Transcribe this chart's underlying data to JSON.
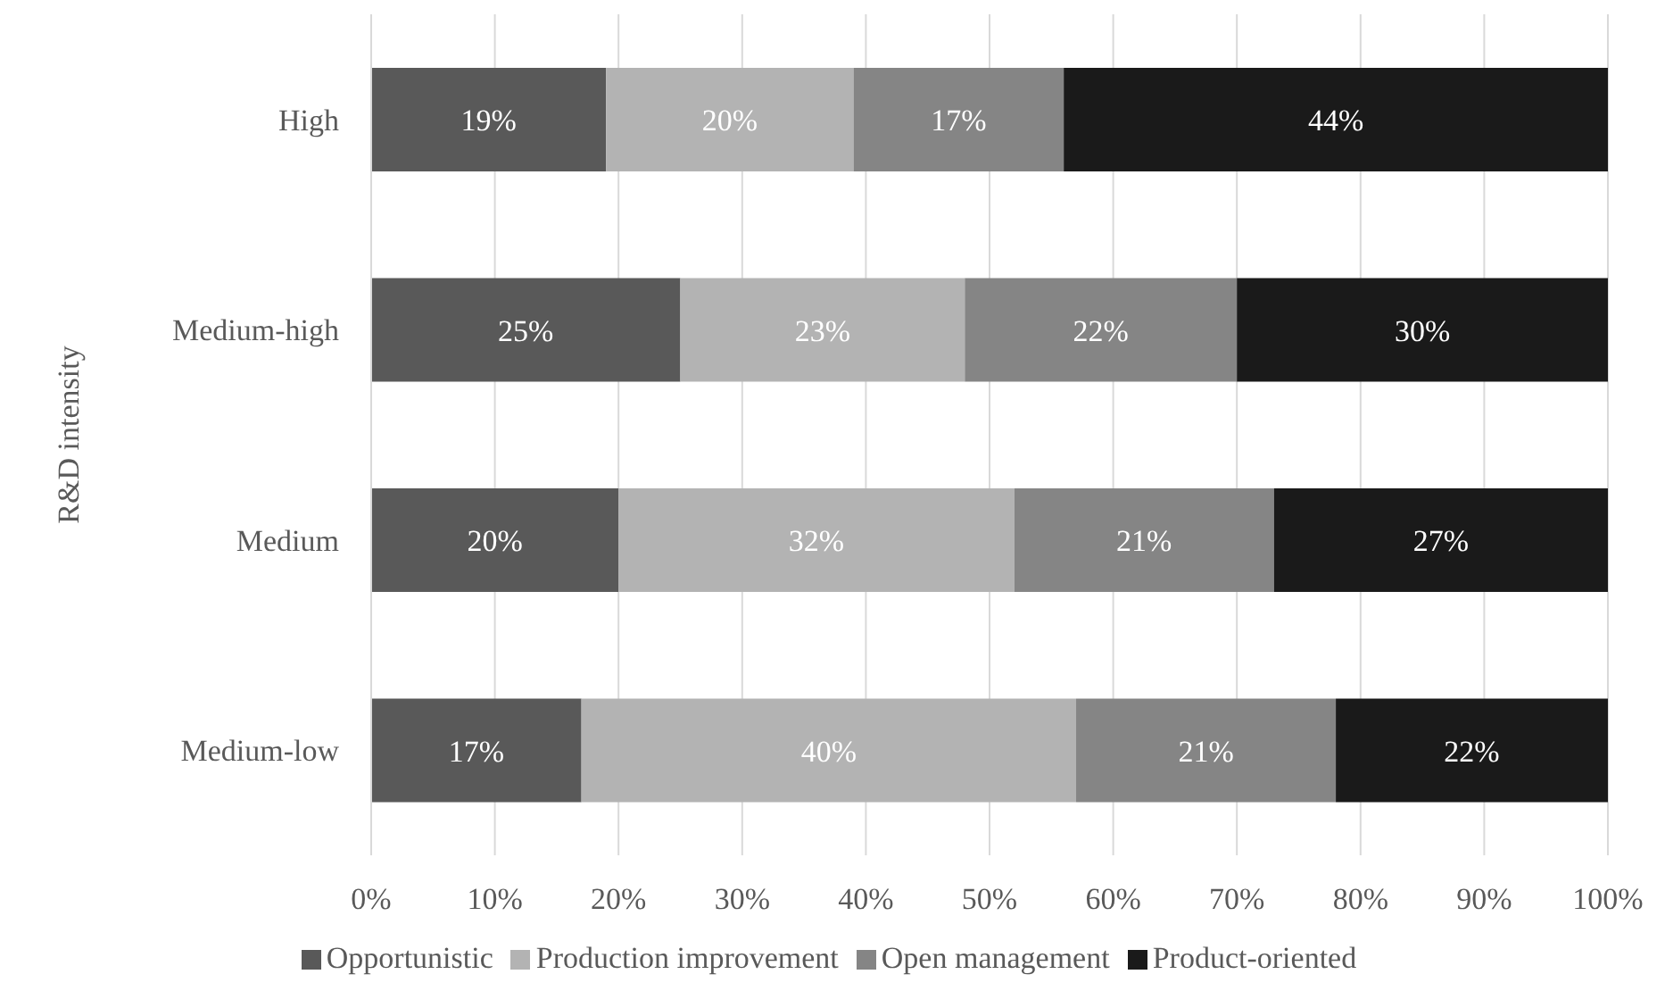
{
  "chart_data": {
    "type": "bar",
    "orientation": "horizontal",
    "stacked": true,
    "ylabel": "R&D intensity",
    "categories": [
      "High",
      "Medium-high",
      "Medium",
      "Medium-low"
    ],
    "series": [
      {
        "name": "Opportunistic",
        "color": "#595959",
        "values": [
          19,
          25,
          20,
          17
        ],
        "value_labels": [
          "19%",
          "25%",
          "20%",
          "17%"
        ]
      },
      {
        "name": "Production improvement",
        "color": "#b3b3b3",
        "values": [
          20,
          23,
          32,
          40
        ],
        "value_labels": [
          "20%",
          "23%",
          "32%",
          "40%"
        ]
      },
      {
        "name": "Open management",
        "color": "#858585",
        "values": [
          17,
          22,
          21,
          21
        ],
        "value_labels": [
          "17%",
          "22%",
          "21%",
          "21%"
        ]
      },
      {
        "name": "Product-oriented",
        "color": "#1a1a1a",
        "values": [
          44,
          30,
          27,
          22
        ],
        "value_labels": [
          "44%",
          "30%",
          "27%",
          "22%"
        ]
      }
    ],
    "xlim": [
      0,
      100
    ],
    "xticks": [
      {
        "value": 0,
        "label": "0%"
      },
      {
        "value": 10,
        "label": "10%"
      },
      {
        "value": 20,
        "label": "20%"
      },
      {
        "value": 30,
        "label": "30%"
      },
      {
        "value": 40,
        "label": "40%"
      },
      {
        "value": 50,
        "label": "50%"
      },
      {
        "value": 60,
        "label": "60%"
      },
      {
        "value": 70,
        "label": "70%"
      },
      {
        "value": 80,
        "label": "80%"
      },
      {
        "value": 90,
        "label": "90%"
      },
      {
        "value": 100,
        "label": "100%"
      }
    ],
    "grid": "x",
    "legend": "bottom"
  }
}
